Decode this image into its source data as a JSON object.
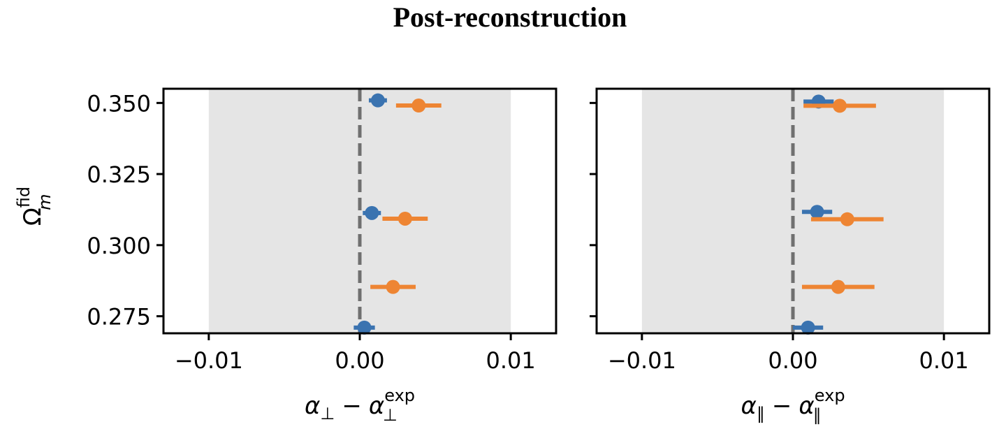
{
  "chart_data": {
    "type": "scatter",
    "title": "Post-reconstruction",
    "ylabel_main": "Ω",
    "ylabel_super": "fid",
    "ylabel_sub": "m",
    "ylim": [
      0.269,
      0.355
    ],
    "yticks": [
      0.275,
      0.3,
      0.325,
      0.35
    ],
    "ytick_labels": [
      "0.275",
      "0.300",
      "0.325",
      "0.350"
    ],
    "shaded_band": [
      -0.01,
      0.01
    ],
    "reference_line": 0.0,
    "colors": {
      "series_a": "#3a73b0",
      "series_b": "#ee8533",
      "band": "#e5e5e5",
      "refline": "#707070"
    },
    "panels": [
      {
        "xlabel_main": "α",
        "xlabel_sub": "⊥",
        "xlabel_minus": "−",
        "xlabel_super": "exp",
        "xlim": [
          -0.013,
          0.013
        ],
        "xticks": [
          -0.01,
          0.0,
          0.01
        ],
        "xtick_labels": [
          "−0.01",
          "0.00",
          "0.01"
        ],
        "series": [
          {
            "key": "series_a",
            "points": [
              {
                "y": 0.3509,
                "x": 0.0012,
                "xerr": 0.0006
              },
              {
                "y": 0.3113,
                "x": 0.0008,
                "xerr": 0.0006
              },
              {
                "y": 0.271,
                "x": 0.0003,
                "xerr": 0.0007
              }
            ]
          },
          {
            "key": "series_b",
            "points": [
              {
                "y": 0.3491,
                "x": 0.0039,
                "xerr": 0.0015
              },
              {
                "y": 0.3093,
                "x": 0.003,
                "xerr": 0.0015
              },
              {
                "y": 0.2853,
                "x": 0.0022,
                "xerr": 0.0015
              }
            ]
          }
        ]
      },
      {
        "xlabel_main": "α",
        "xlabel_sub": "∥",
        "xlabel_minus": "−",
        "xlabel_super": "exp",
        "xlim": [
          -0.013,
          0.013
        ],
        "xticks": [
          -0.01,
          0.0,
          0.01
        ],
        "xtick_labels": [
          "−0.01",
          "0.00",
          "0.01"
        ],
        "series": [
          {
            "key": "series_a",
            "points": [
              {
                "y": 0.3505,
                "x": 0.0017,
                "xerr": 0.001
              },
              {
                "y": 0.3117,
                "x": 0.0016,
                "xerr": 0.001
              },
              {
                "y": 0.271,
                "x": 0.001,
                "xerr": 0.001
              }
            ]
          },
          {
            "key": "series_b",
            "points": [
              {
                "y": 0.349,
                "x": 0.0031,
                "xerr": 0.0024
              },
              {
                "y": 0.3091,
                "x": 0.0036,
                "xerr": 0.0024
              },
              {
                "y": 0.2853,
                "x": 0.003,
                "xerr": 0.0024
              }
            ]
          }
        ]
      }
    ]
  }
}
